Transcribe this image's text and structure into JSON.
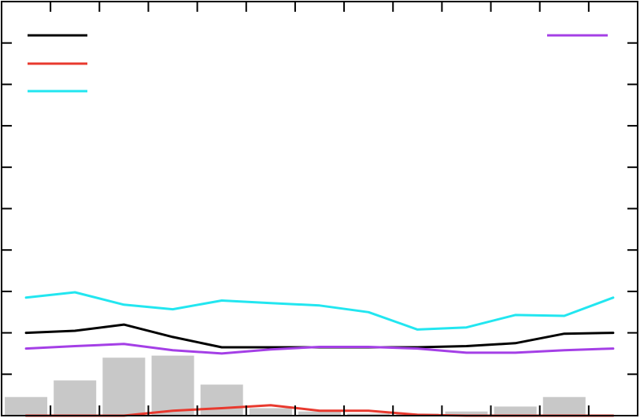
{
  "chart_data": {
    "type": "line",
    "title": "",
    "xlabel": "",
    "ylabel": "",
    "x": [
      1,
      2,
      3,
      4,
      5,
      6,
      7,
      8,
      9,
      10,
      11,
      12,
      13
    ],
    "xlim": [
      0.5,
      13.5
    ],
    "ylim": [
      0,
      10
    ],
    "x_ticks": [
      1.5,
      2.5,
      3.5,
      4.5,
      5.5,
      6.5,
      7.5,
      8.5,
      9.5,
      10.5,
      11.5,
      12.5
    ],
    "y_ticks": [
      0,
      1,
      2,
      3,
      4,
      5,
      6,
      7,
      8,
      9,
      10
    ],
    "tick_labels_visible": false,
    "grid": false,
    "legend": [
      {
        "position": "top-left",
        "entries": [
          "black",
          "red",
          "cyan"
        ]
      },
      {
        "position": "top-right",
        "entries": [
          "purple"
        ]
      }
    ],
    "bars": {
      "color": "#c8c8c8",
      "values": [
        0.45,
        0.85,
        1.4,
        1.45,
        0.75,
        0.18,
        0.1,
        0.05,
        0.05,
        0.1,
        0.22,
        0.45,
        0
      ]
    },
    "series": [
      {
        "color": "#000000",
        "values": [
          2.0,
          2.05,
          2.2,
          1.9,
          1.65,
          1.65,
          1.65,
          1.65,
          1.65,
          1.68,
          1.75,
          1.98,
          2.0
        ]
      },
      {
        "color": "#e8392e",
        "values": [
          0.0,
          0.0,
          0.0,
          0.12,
          0.18,
          0.25,
          0.12,
          0.12,
          0.02,
          0.0,
          0.0,
          0.0,
          0.0
        ]
      },
      {
        "color": "#22e6f0",
        "values": [
          2.85,
          2.98,
          2.68,
          2.57,
          2.78,
          2.72,
          2.66,
          2.5,
          2.08,
          2.13,
          2.43,
          2.41,
          2.85
        ]
      },
      {
        "color": "#a43fe6",
        "values": [
          1.62,
          1.68,
          1.73,
          1.58,
          1.5,
          1.6,
          1.66,
          1.66,
          1.62,
          1.52,
          1.52,
          1.58,
          1.62
        ]
      }
    ]
  }
}
